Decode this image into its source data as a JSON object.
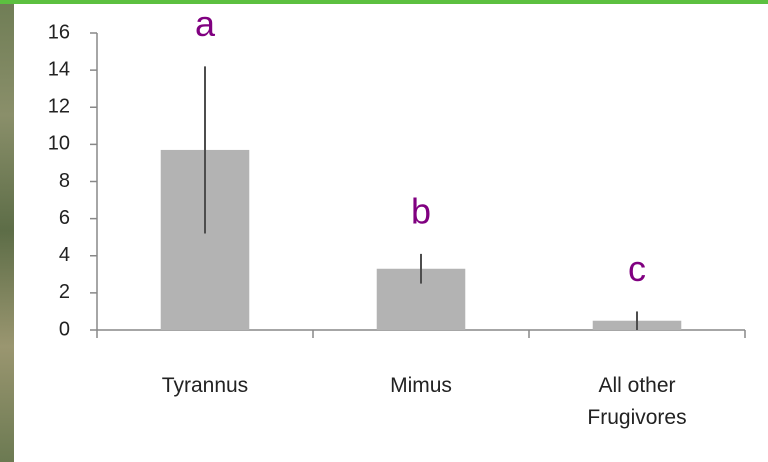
{
  "chart_data": {
    "type": "bar",
    "categories": [
      "Tyrannus",
      "Mimus",
      "All other Frugivores"
    ],
    "values": [
      9.7,
      3.3,
      0.5
    ],
    "errors": [
      4.5,
      0.8,
      0.5
    ],
    "annotations": [
      "a",
      "b",
      "c"
    ],
    "color": "#b3b3b3",
    "error_color": "#4d4d4d",
    "annotation_color": "#800080",
    "ylim": [
      0,
      16
    ],
    "yticks": [
      0,
      2,
      4,
      6,
      8,
      10,
      12,
      14,
      16
    ],
    "grid": false
  }
}
